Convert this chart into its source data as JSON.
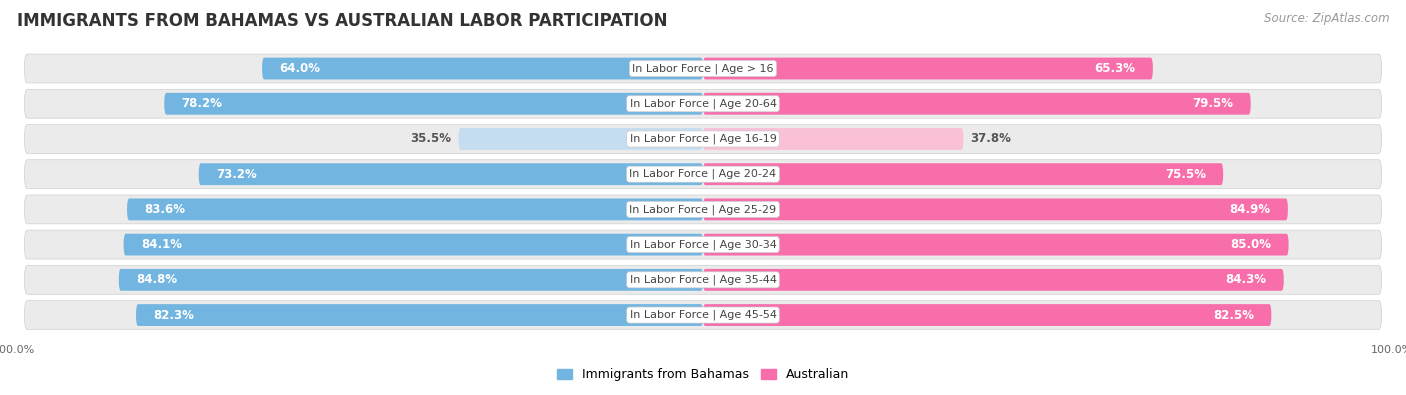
{
  "title": "IMMIGRANTS FROM BAHAMAS VS AUSTRALIAN LABOR PARTICIPATION",
  "source": "Source: ZipAtlas.com",
  "categories": [
    "In Labor Force | Age > 16",
    "In Labor Force | Age 20-64",
    "In Labor Force | Age 16-19",
    "In Labor Force | Age 20-24",
    "In Labor Force | Age 25-29",
    "In Labor Force | Age 30-34",
    "In Labor Force | Age 35-44",
    "In Labor Force | Age 45-54"
  ],
  "bahamas_values": [
    64.0,
    78.2,
    35.5,
    73.2,
    83.6,
    84.1,
    84.8,
    82.3
  ],
  "australian_values": [
    65.3,
    79.5,
    37.8,
    75.5,
    84.9,
    85.0,
    84.3,
    82.5
  ],
  "bahamas_color": "#72b5e0",
  "bahamas_light_color": "#c5ddf0",
  "australian_color": "#f76eaa",
  "australian_light_color": "#f9c0d8",
  "row_bg_color": "#ebebeb",
  "row_border_color": "#d0d0d0",
  "title_fontsize": 12,
  "source_fontsize": 8.5,
  "bar_label_fontsize": 8.5,
  "category_fontsize": 8,
  "legend_fontsize": 9,
  "axis_label_fontsize": 8,
  "figure_bg_color": "#ffffff",
  "legend_bahamas": "Immigrants from Bahamas",
  "legend_australian": "Australian"
}
